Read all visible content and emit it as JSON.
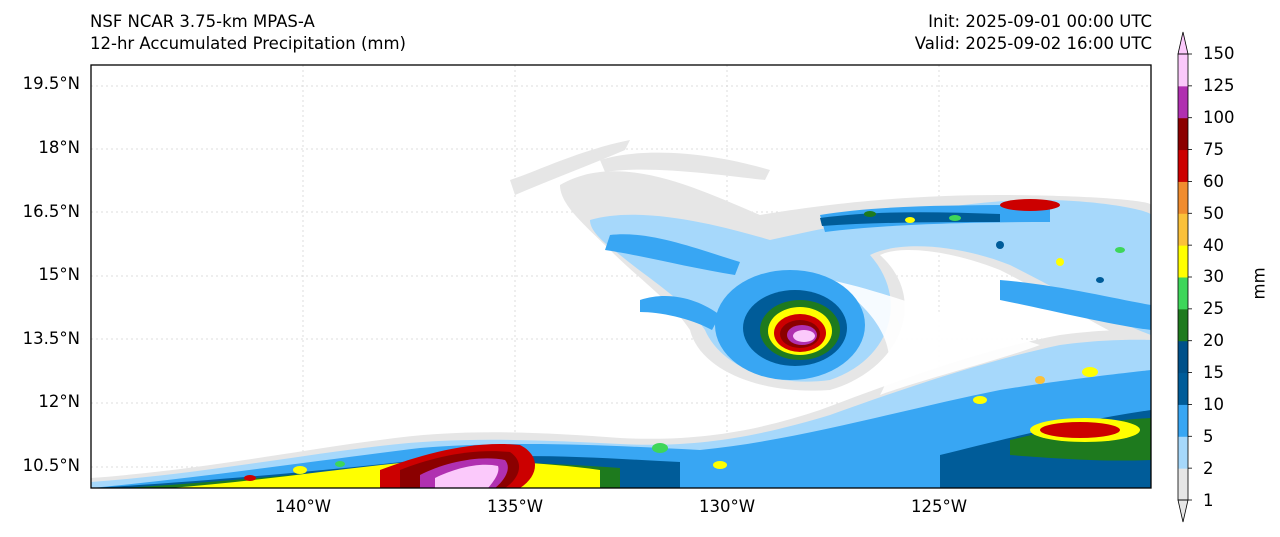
{
  "header": {
    "model": "NSF NCAR 3.75-km MPAS-A",
    "field": "12-hr Accumulated Precipitation (mm)",
    "init": "Init: 2025-09-01 00:00 UTC",
    "valid": "Valid: 2025-09-02 16:00 UTC"
  },
  "map": {
    "lat_labels": [
      "19.5°N",
      "18°N",
      "16.5°N",
      "15°N",
      "13.5°N",
      "12°N",
      "10.5°N"
    ],
    "lon_labels": [
      "140°W",
      "135°W",
      "130°W",
      "125°W"
    ],
    "extent": {
      "lon_min": -145.3,
      "lon_max": -120.3,
      "lat_min": 10.0,
      "lat_max": 20.0
    }
  },
  "colorbar": {
    "unit": "mm",
    "ticks": [
      "150",
      "125",
      "100",
      "75",
      "60",
      "50",
      "40",
      "30",
      "25",
      "20",
      "15",
      "10",
      "5",
      "2",
      "1"
    ],
    "colors": [
      "#e6e6e6",
      "#a6d8fb",
      "#38a6f3",
      "#005c99",
      "#00518a",
      "#1e7a1e",
      "#3ed65a",
      "#ffff00",
      "#fbc13a",
      "#f08c2e",
      "#cc0000",
      "#8b0000",
      "#b030b0",
      "#fbc9fb"
    ]
  }
}
